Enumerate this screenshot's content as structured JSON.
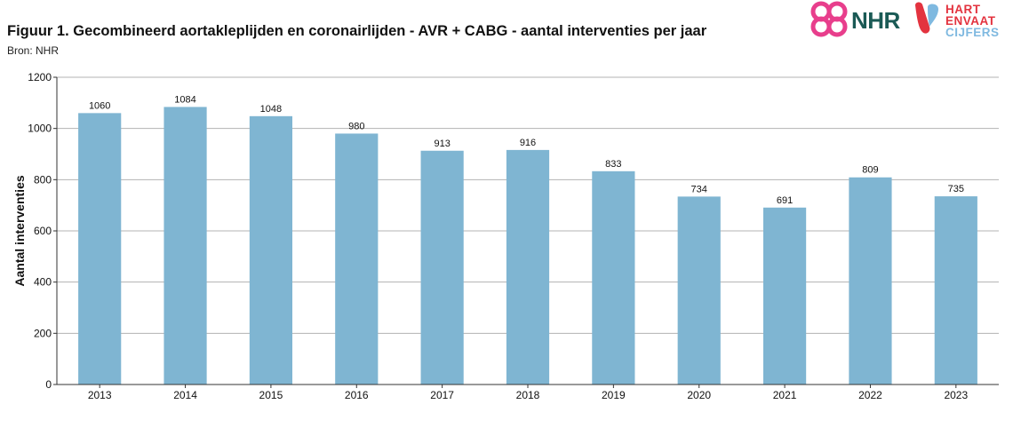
{
  "header": {
    "title": "Figuur 1. Gecombineerd aortakleplijden en coronairlijden - AVR + CABG - aantal interventies per jaar",
    "source": "Bron: NHR"
  },
  "logos": {
    "nhr_text": "NHR",
    "hartenvaat_line1": "HART",
    "hartenvaat_line2": "ENVAAT",
    "hartenvaat_line3": "CIJFERS",
    "nhr_color": "#e83e8c",
    "nhr_text_color": "#1a5a55",
    "hev_red": "#e3333f",
    "hev_blue": "#7fb9e0"
  },
  "chart_data": {
    "type": "bar",
    "categories": [
      "2013",
      "2014",
      "2015",
      "2016",
      "2017",
      "2018",
      "2019",
      "2020",
      "2021",
      "2022",
      "2023"
    ],
    "values": [
      1060,
      1084,
      1048,
      980,
      913,
      916,
      833,
      734,
      691,
      809,
      735
    ],
    "data_labels": [
      "1060",
      "1084",
      "1048",
      "980",
      "913",
      "916",
      "833",
      "734",
      "691",
      "809",
      "735"
    ],
    "ylabel": "Aantal interventies",
    "xlabel": "",
    "ylim": [
      0,
      1200
    ],
    "yticks": [
      0,
      200,
      400,
      600,
      800,
      1000,
      1200
    ],
    "ytick_labels": [
      "0",
      "200",
      "400",
      "600",
      "800",
      "1000",
      "1200"
    ],
    "grid": true,
    "bar_color": "#7fb5d2",
    "grid_color": "#b3b3b3",
    "axis_color": "#333333"
  }
}
